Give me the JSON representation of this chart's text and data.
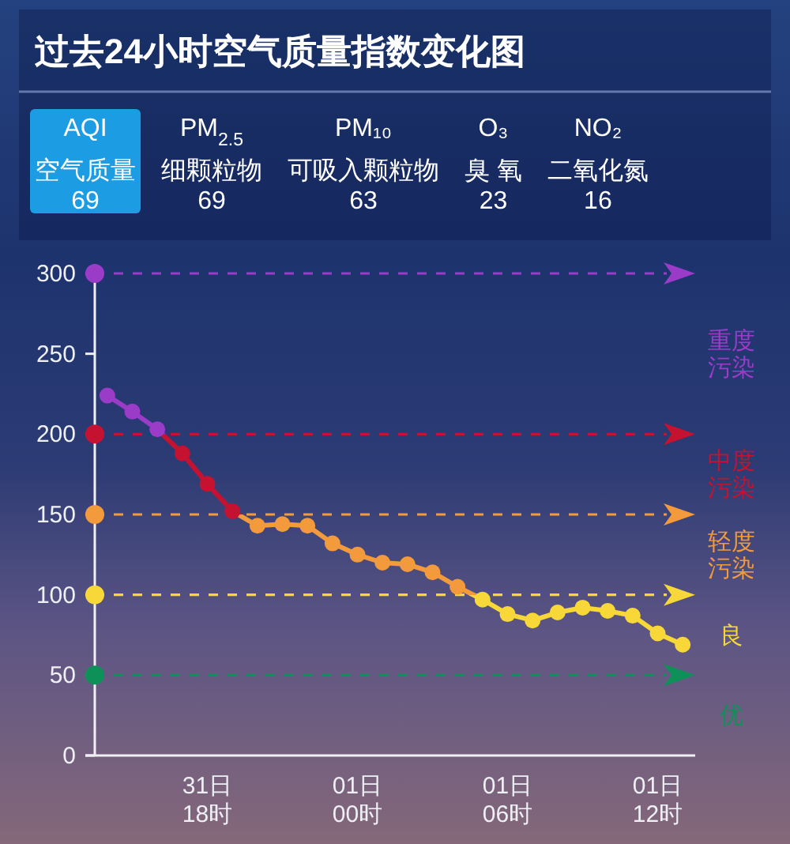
{
  "chart_data": [
    {
      "type": "other",
      "title": "过去24小时空气质量指数变化图",
      "categories": [
        "AQI\n空气质量",
        "PM$_{2.5}$\n细颗粒物",
        "PM₁₀\n可吸入颗粒物",
        "O₃\n臭 氧",
        "NO₂\n二氧化氮"
      ],
      "values": [
        69,
        69,
        63,
        23,
        16
      ],
      "data_labels": true,
      "colors": [
        "#1c9de3",
        null,
        null,
        null,
        null
      ]
    },
    {
      "type": "line",
      "categories": [
        null,
        null,
        null,
        null,
        "31日\n18时",
        null,
        null,
        null,
        null,
        null,
        "01日\n00时",
        null,
        null,
        null,
        null,
        null,
        "01日\n06时",
        null,
        null,
        null,
        null,
        null,
        "01日\n12时",
        null
      ],
      "ylim": [
        0,
        300
      ],
      "yticks": [
        0,
        50,
        100,
        150,
        200,
        250,
        300
      ],
      "marker": "circle",
      "series": [
        {
          "values": [
            224,
            214,
            203,
            188,
            169,
            152,
            143,
            144,
            143,
            132,
            125,
            120,
            119,
            114,
            105,
            97,
            88,
            84,
            89,
            92,
            90,
            87,
            76,
            69
          ],
          "colors": [
            "#9a3cc8",
            "#9a3cc8",
            "#9a3cc8",
            "#c41230",
            "#c41230",
            "#c41230",
            "#f39a3c",
            "#f39a3c",
            "#f39a3c",
            "#f39a3c",
            "#f39a3c",
            "#f39a3c",
            "#f39a3c",
            "#f39a3c",
            "#f39a3c",
            "#f8d838",
            "#f8d838",
            "#f8d838",
            "#f8d838",
            "#f8d838",
            "#f8d838",
            "#f8d838",
            "#f8d838",
            "#f8d838"
          ]
        }
      ],
      "ref_lines": [
        {
          "axis": "y",
          "value": 300,
          "label": "重度污染",
          "color": "#9a3cc8",
          "line_style": "dashed"
        },
        {
          "axis": "y",
          "value": 200,
          "label": "中度污染",
          "color": "#c41230",
          "line_style": "dashed"
        },
        {
          "axis": "y",
          "value": 150,
          "label": "轻度污染",
          "color": "#f39a3c",
          "line_style": "dashed"
        },
        {
          "axis": "y",
          "value": 100,
          "label": "良",
          "color": "#f8d838",
          "line_style": "dashed"
        },
        {
          "axis": "y",
          "value": 50,
          "label": "优",
          "color": "#0e9158",
          "line_style": "dashed"
        }
      ]
    }
  ]
}
